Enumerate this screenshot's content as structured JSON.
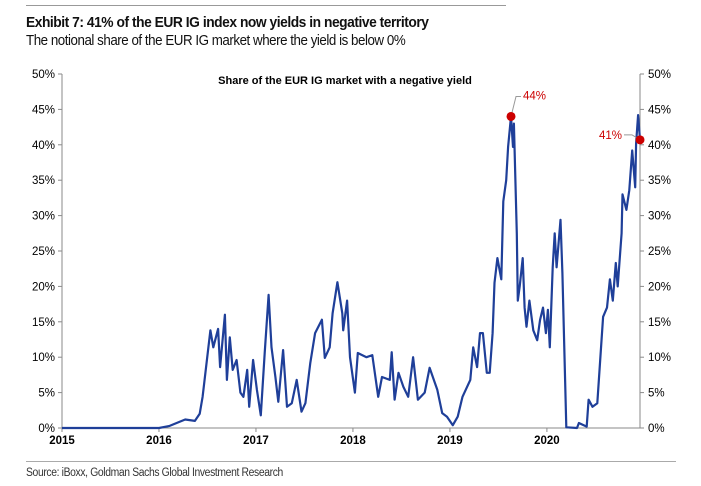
{
  "header": {
    "title": "Exhibit 7: 41% of the EUR IG index now yields in negative territory",
    "subtitle": "The notional share of the EUR IG market where the yield is below 0%"
  },
  "footer": {
    "source": "Source: iBoxx, Goldman Sachs Global Investment Research"
  },
  "chart_data": {
    "type": "line",
    "title": "Share of the EUR IG market with a negative yield",
    "xlabel": "",
    "ylabel": "",
    "xlim": [
      2015,
      2020.96
    ],
    "ylim": [
      0,
      50
    ],
    "x_ticks": [
      "2015",
      "2016",
      "2017",
      "2018",
      "2019",
      "2020"
    ],
    "y_ticks": [
      "0%",
      "5%",
      "10%",
      "15%",
      "20%",
      "25%",
      "30%",
      "35%",
      "40%",
      "45%",
      "50%"
    ],
    "y_axes": [
      "left",
      "right"
    ],
    "grid": false,
    "line_color": "#1f3f99",
    "marker_color": "#cc0000",
    "annotation_color": "#cc0000",
    "annotations": [
      {
        "label": "44%",
        "x": 2019.63,
        "y": 44
      },
      {
        "label": "41%",
        "x": 2020.96,
        "y": 40.7
      }
    ],
    "series": [
      {
        "x": [
          2015.0,
          2016.0,
          2016.11,
          2016.27,
          2016.37,
          2016.42,
          2016.45,
          2016.51,
          2016.53,
          2016.56,
          2016.61,
          2016.63,
          2016.68,
          2016.7,
          2016.73,
          2016.76,
          2016.8,
          2016.84,
          2016.87,
          2016.91,
          2016.93,
          2016.97,
          2017.01,
          2017.05,
          2017.09,
          2017.13,
          2017.16,
          2017.2,
          2017.23,
          2017.28,
          2017.32,
          2017.37,
          2017.42,
          2017.47,
          2017.51,
          2017.56,
          2017.61,
          2017.68,
          2017.71,
          2017.76,
          2017.79,
          2017.84,
          2017.89,
          2017.9,
          2017.94,
          2017.97,
          2018.02,
          2018.05,
          2018.14,
          2018.2,
          2018.26,
          2018.3,
          2018.38,
          2018.4,
          2018.43,
          2018.47,
          2018.52,
          2018.57,
          2018.62,
          2018.67,
          2018.74,
          2018.79,
          2018.87,
          2018.92,
          2018.97,
          2019.03,
          2019.08,
          2019.13,
          2019.21,
          2019.24,
          2019.28,
          2019.31,
          2019.34,
          2019.38,
          2019.41,
          2019.44,
          2019.46,
          2019.49,
          2019.53,
          2019.55,
          2019.58,
          2019.6,
          2019.63,
          2019.65,
          2019.66,
          2019.69,
          2019.7,
          2019.72,
          2019.75,
          2019.77,
          2019.79,
          2019.82,
          2019.86,
          2019.9,
          2019.93,
          2019.96,
          2019.99,
          2020.01,
          2020.03,
          2020.06,
          2020.08,
          2020.1,
          2020.14,
          2020.16,
          2020.2,
          2020.31,
          2020.33,
          2020.41,
          2020.43,
          2020.47,
          2020.52,
          2020.55,
          2020.58,
          2020.62,
          2020.65,
          2020.68,
          2020.71,
          2020.73,
          2020.77,
          2020.78,
          2020.82,
          2020.85,
          2020.88,
          2020.91,
          2020.92,
          2020.94,
          2020.96
        ],
        "y": [
          0,
          0,
          0.3,
          1.2,
          1.0,
          2.0,
          4.4,
          11.4,
          13.8,
          11.4,
          14,
          8.6,
          16,
          6.8,
          12.8,
          8.2,
          9.6,
          5,
          4.4,
          8.2,
          3,
          9.6,
          5.4,
          1.8,
          10.6,
          18.8,
          11.4,
          7.2,
          3.7,
          11,
          3,
          3.5,
          6.8,
          2.3,
          3.5,
          9.2,
          13.4,
          15.3,
          9.9,
          11.4,
          16.2,
          20.6,
          16.2,
          13.8,
          18,
          10,
          5,
          10.6,
          10,
          10.3,
          4.4,
          7.2,
          6.8,
          10.7,
          4,
          7.8,
          5.8,
          4.4,
          10,
          4,
          5,
          8.5,
          5.4,
          2.1,
          1.6,
          0.4,
          1.6,
          4.4,
          6.8,
          11.4,
          8.6,
          13.4,
          13.4,
          7.8,
          7.8,
          13.4,
          20.5,
          24,
          21,
          32,
          35,
          39.7,
          44,
          39.7,
          43,
          27.5,
          18,
          20,
          24,
          17,
          14.3,
          18,
          13.8,
          12.4,
          15.3,
          17,
          13.4,
          16.7,
          11.4,
          22.7,
          27.5,
          22.7,
          29.4,
          21.9,
          0.1,
          0,
          0.7,
          0.2,
          4,
          3,
          3.5,
          9.6,
          15.7,
          17,
          21,
          18,
          23.3,
          20,
          27.5,
          33,
          30.8,
          33.6,
          39.2,
          34,
          40.2,
          44.2,
          40.7
        ]
      }
    ]
  }
}
